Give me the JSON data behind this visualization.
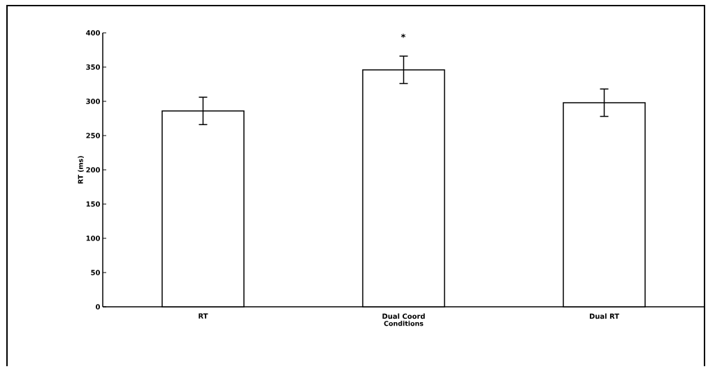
{
  "chart_data": {
    "type": "bar",
    "xlabel": "Conditions",
    "ylabel": "RT (ms)",
    "categories": [
      "RT",
      "Dual Coord",
      "Dual RT"
    ],
    "values": [
      286,
      346,
      298
    ],
    "errors": [
      20,
      20,
      20
    ],
    "color": "#ffffff",
    "ylim": [
      0,
      400
    ],
    "yticks": [
      0,
      50,
      100,
      150,
      200,
      250,
      300,
      350,
      400
    ],
    "annotations": [
      "*"
    ]
  }
}
